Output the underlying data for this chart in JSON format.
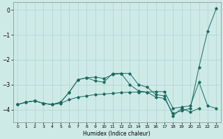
{
  "xlabel": "Humidex (Indice chaleur)",
  "background_color": "#ceeae7",
  "grid_color": "#aed4d0",
  "line_color": "#1a6b60",
  "xlim": [
    -0.5,
    23.5
  ],
  "ylim": [
    -4.5,
    0.3
  ],
  "xticks": [
    0,
    1,
    2,
    3,
    4,
    5,
    6,
    7,
    8,
    9,
    10,
    11,
    12,
    13,
    14,
    15,
    16,
    17,
    18,
    19,
    20,
    21,
    22,
    23
  ],
  "yticks": [
    0,
    -1,
    -2,
    -3,
    -4
  ],
  "line1_x": [
    0,
    1,
    2,
    3,
    4,
    5,
    6,
    7,
    8,
    9,
    10,
    11,
    12,
    13,
    14,
    15,
    16,
    17,
    18,
    19,
    20,
    21,
    22,
    23
  ],
  "line1_y": [
    -3.8,
    -3.7,
    -3.65,
    -3.75,
    -3.8,
    -3.75,
    -3.6,
    -3.5,
    -3.45,
    -3.4,
    -3.38,
    -3.35,
    -3.32,
    -3.3,
    -3.3,
    -3.3,
    -3.28,
    -3.28,
    -3.95,
    -3.9,
    -3.85,
    -2.9,
    -3.85,
    -3.95
  ],
  "line2_x": [
    0,
    1,
    2,
    3,
    4,
    5,
    6,
    7,
    8,
    9,
    10,
    11,
    12,
    13,
    14,
    15,
    16,
    17,
    18,
    19,
    20,
    21,
    22,
    23
  ],
  "line2_y": [
    -3.8,
    -3.7,
    -3.65,
    -3.75,
    -3.8,
    -3.7,
    -3.3,
    -2.8,
    -2.72,
    -2.85,
    -2.9,
    -2.55,
    -2.55,
    -3.0,
    -3.25,
    -3.3,
    -3.5,
    -3.55,
    -4.15,
    -4.05,
    -3.95,
    -2.3,
    -0.85,
    0.05
  ],
  "line3_x": [
    0,
    1,
    2,
    3,
    4,
    5,
    6,
    7,
    8,
    9,
    10,
    11,
    12,
    13,
    14,
    15,
    16,
    17,
    18,
    19,
    20,
    21,
    22,
    23
  ],
  "line3_y": [
    -3.8,
    -3.7,
    -3.65,
    -3.75,
    -3.8,
    -3.7,
    -3.3,
    -2.8,
    -2.72,
    -2.7,
    -2.75,
    -2.6,
    -2.55,
    -2.55,
    -3.0,
    -3.1,
    -3.4,
    -3.45,
    -4.25,
    -3.95,
    -4.1,
    -3.95,
    null,
    null
  ]
}
